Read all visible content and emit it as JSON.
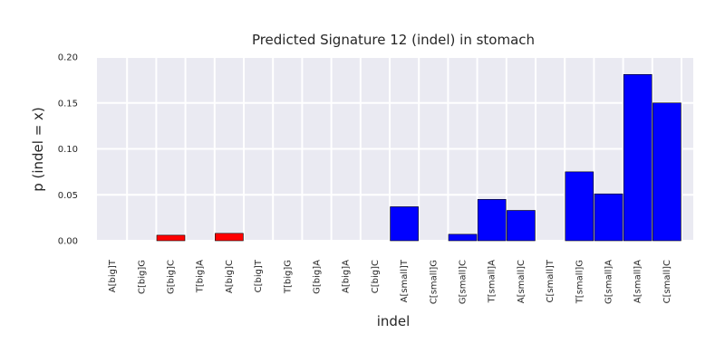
{
  "chart_data": {
    "type": "bar",
    "title": "Predicted Signature 12 (indel) in stomach",
    "xlabel": "indel",
    "ylabel": "p (indel = x)",
    "ylim": [
      0,
      0.2
    ],
    "yticks": [
      "0.00",
      "0.05",
      "0.10",
      "0.15",
      "0.20"
    ],
    "grid": true,
    "categories": [
      "A[big]T",
      "C[big]G",
      "G[big]C",
      "T[big]A",
      "A[big]C",
      "C[big]T",
      "T[big]G",
      "G[big]A",
      "A[big]A",
      "C[big]C",
      "A[small]T",
      "C[small]G",
      "G[small]C",
      "T[small]A",
      "A[small]C",
      "C[small]T",
      "T[small]G",
      "G[small]A",
      "A[small]A",
      "C[small]C"
    ],
    "values": [
      0,
      0,
      0.006,
      0,
      0.008,
      0,
      0,
      0,
      0,
      0,
      0.037,
      0,
      0.007,
      0.045,
      0.033,
      0,
      0.075,
      0.051,
      0.181,
      0.15
    ],
    "colors": [
      "#ff0000",
      "#ff0000",
      "#ff0000",
      "#ff0000",
      "#ff0000",
      "#ff0000",
      "#ff0000",
      "#ff0000",
      "#ff0000",
      "#ff0000",
      "#0000ff",
      "#0000ff",
      "#0000ff",
      "#0000ff",
      "#0000ff",
      "#0000ff",
      "#0000ff",
      "#0000ff",
      "#0000ff",
      "#0000ff"
    ],
    "plot_background": "#eaeaf2",
    "grid_color": "#ffffff"
  }
}
